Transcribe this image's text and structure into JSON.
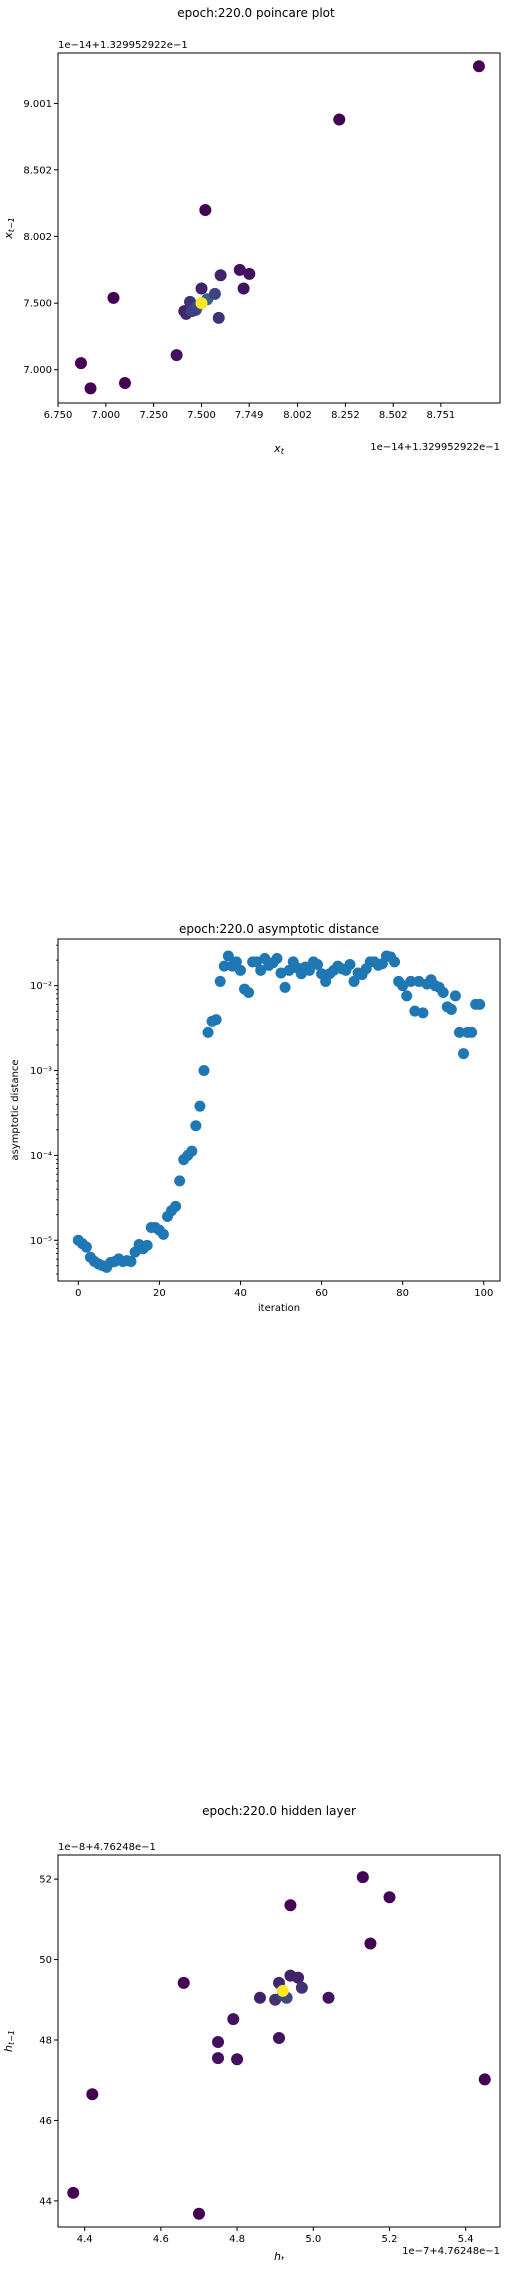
{
  "chart_data": [
    {
      "type": "scatter",
      "title": "epoch:220.0 poincare plot",
      "xlabel": "x_t",
      "ylabel": "x_{t-1}",
      "x_offset_label": "1e−14+1.329952922e−1",
      "y_offset_label": "1e−14+1.329952922e−1",
      "xlim": [
        6.75,
        9.06
      ],
      "ylim": [
        6.75,
        9.38
      ],
      "xticks": [
        6.75,
        7.0,
        7.25,
        7.5,
        7.749,
        8.002,
        8.252,
        8.502,
        8.751
      ],
      "xtick_labels": [
        "6.750",
        "7.000",
        "7.250",
        "7.500",
        "7.749",
        "8.002",
        "8.252",
        "8.502",
        "8.751"
      ],
      "yticks": [
        7.0,
        7.5,
        8.002,
        8.502,
        9.001
      ],
      "ytick_labels": [
        "7.000",
        "7.500",
        "8.002",
        "8.502",
        "9.001"
      ],
      "grid": false,
      "colormap": "viridis",
      "points": [
        {
          "x": 6.87,
          "y": 7.05,
          "c": 0.0
        },
        {
          "x": 6.92,
          "y": 6.86,
          "c": 0.0
        },
        {
          "x": 7.04,
          "y": 7.54,
          "c": 0.0
        },
        {
          "x": 7.1,
          "y": 6.9,
          "c": 0.0
        },
        {
          "x": 7.37,
          "y": 7.11,
          "c": 0.05
        },
        {
          "x": 7.52,
          "y": 8.2,
          "c": 0.0
        },
        {
          "x": 7.41,
          "y": 7.44,
          "c": 0.1
        },
        {
          "x": 7.42,
          "y": 7.42,
          "c": 0.12
        },
        {
          "x": 7.44,
          "y": 7.51,
          "c": 0.15
        },
        {
          "x": 7.45,
          "y": 7.44,
          "c": 0.2
        },
        {
          "x": 7.47,
          "y": 7.45,
          "c": 0.2
        },
        {
          "x": 7.48,
          "y": 7.48,
          "c": 0.22
        },
        {
          "x": 7.5,
          "y": 7.61,
          "c": 0.1
        },
        {
          "x": 7.53,
          "y": 7.53,
          "c": 0.3
        },
        {
          "x": 7.57,
          "y": 7.57,
          "c": 0.2
        },
        {
          "x": 7.59,
          "y": 7.39,
          "c": 0.15
        },
        {
          "x": 7.6,
          "y": 7.71,
          "c": 0.1
        },
        {
          "x": 7.7,
          "y": 7.75,
          "c": 0.05
        },
        {
          "x": 7.72,
          "y": 7.61,
          "c": 0.05
        },
        {
          "x": 7.75,
          "y": 7.72,
          "c": 0.05
        },
        {
          "x": 8.22,
          "y": 8.88,
          "c": 0.0
        },
        {
          "x": 8.95,
          "y": 9.28,
          "c": 0.0
        },
        {
          "x": 7.5,
          "y": 7.5,
          "c": 1.0
        }
      ]
    },
    {
      "type": "scatter",
      "title": "epoch:220.0 asymptotic distance",
      "xlabel": "iteration",
      "ylabel": "asymptotic distance",
      "yscale": "log",
      "xlim": [
        -5,
        104
      ],
      "ylim_log10": [
        -5.48,
        -1.45
      ],
      "xticks": [
        0,
        20,
        40,
        60,
        80,
        100
      ],
      "xtick_labels": [
        "0",
        "20",
        "40",
        "60",
        "80",
        "100"
      ],
      "yticks_log10": [
        -5,
        -4,
        -3,
        -2
      ],
      "ytick_labels": [
        "10⁻⁵",
        "10⁻⁴",
        "10⁻³",
        "10⁻²"
      ],
      "grid": false,
      "color": "#1f77b4",
      "x": [
        0,
        1,
        2,
        3,
        4,
        5,
        6,
        7,
        8,
        9,
        10,
        11,
        12,
        13,
        14,
        15,
        16,
        17,
        18,
        19,
        20,
        21,
        22,
        23,
        24,
        25,
        26,
        27,
        28,
        29,
        30,
        31,
        32,
        33,
        34,
        35,
        36,
        37,
        38,
        39,
        40,
        41,
        42,
        43,
        44,
        45,
        46,
        47,
        48,
        49,
        50,
        51,
        52,
        53,
        54,
        55,
        56,
        57,
        58,
        59,
        60,
        61,
        62,
        63,
        64,
        65,
        66,
        67,
        68,
        69,
        70,
        71,
        72,
        73,
        74,
        75,
        76,
        77,
        78,
        79,
        80,
        81,
        82,
        83,
        84,
        85,
        86,
        87,
        88,
        89,
        90,
        91,
        92,
        93,
        94,
        95,
        96,
        97,
        98,
        99
      ],
      "log10_y": [
        -5.0,
        -5.04,
        -5.08,
        -5.2,
        -5.25,
        -5.28,
        -5.3,
        -5.32,
        -5.26,
        -5.25,
        -5.22,
        -5.25,
        -5.24,
        -5.25,
        -5.14,
        -5.05,
        -5.1,
        -5.06,
        -4.85,
        -4.85,
        -4.88,
        -4.93,
        -4.72,
        -4.65,
        -4.6,
        -4.3,
        -4.05,
        -4.0,
        -3.95,
        -3.65,
        -3.42,
        -3.0,
        -2.55,
        -2.42,
        -2.4,
        -1.95,
        -1.77,
        -1.65,
        -1.77,
        -1.72,
        -1.82,
        -2.04,
        -2.08,
        -1.72,
        -1.72,
        -1.82,
        -1.68,
        -1.76,
        -1.73,
        -1.68,
        -1.85,
        -2.02,
        -1.82,
        -1.72,
        -1.79,
        -1.86,
        -1.78,
        -1.82,
        -1.72,
        -1.75,
        -1.86,
        -1.95,
        -1.86,
        -1.82,
        -1.77,
        -1.8,
        -1.82,
        -1.75,
        -1.95,
        -1.85,
        -1.87,
        -1.8,
        -1.72,
        -1.72,
        -1.76,
        -1.74,
        -1.65,
        -1.66,
        -1.72,
        -1.95,
        -2.0,
        -2.12,
        -1.95,
        -2.3,
        -1.95,
        -2.32,
        -1.98,
        -1.93,
        -2.0,
        -2.02,
        -2.08,
        -2.25,
        -2.28,
        -2.12,
        -2.55,
        -2.8,
        -2.55,
        -2.55,
        -2.22,
        -2.22
      ]
    },
    {
      "type": "scatter",
      "title": "epoch:220.0 hidden layer",
      "xlabel": "h_t",
      "ylabel": "h_{t-1}",
      "x_offset_label": "1e−7+4.76248e−1",
      "y_offset_label": "1e−8+4.76248e−1",
      "xlim": [
        4.33,
        5.49
      ],
      "ylim": [
        43.35,
        52.6
      ],
      "xticks": [
        4.4,
        4.6,
        4.8,
        5.0,
        5.2,
        5.4
      ],
      "xtick_labels": [
        "4.4",
        "4.6",
        "4.8",
        "5.0",
        "5.2",
        "5.4"
      ],
      "yticks": [
        44,
        46,
        48,
        50,
        52
      ],
      "ytick_labels": [
        "44",
        "46",
        "48",
        "50",
        "52"
      ],
      "grid": false,
      "colormap": "viridis",
      "points": [
        {
          "x": 4.37,
          "y": 44.2,
          "c": 0.0
        },
        {
          "x": 4.42,
          "y": 46.65,
          "c": 0.0
        },
        {
          "x": 4.66,
          "y": 49.42,
          "c": 0.0
        },
        {
          "x": 4.7,
          "y": 43.68,
          "c": 0.0
        },
        {
          "x": 4.75,
          "y": 47.95,
          "c": 0.05
        },
        {
          "x": 4.75,
          "y": 47.55,
          "c": 0.05
        },
        {
          "x": 4.79,
          "y": 48.52,
          "c": 0.05
        },
        {
          "x": 4.8,
          "y": 47.52,
          "c": 0.05
        },
        {
          "x": 4.86,
          "y": 49.05,
          "c": 0.1
        },
        {
          "x": 4.9,
          "y": 49.0,
          "c": 0.15
        },
        {
          "x": 4.91,
          "y": 49.42,
          "c": 0.12
        },
        {
          "x": 4.91,
          "y": 48.05,
          "c": 0.05
        },
        {
          "x": 4.92,
          "y": 49.12,
          "c": 0.2
        },
        {
          "x": 4.93,
          "y": 49.05,
          "c": 0.22
        },
        {
          "x": 4.94,
          "y": 49.6,
          "c": 0.1
        },
        {
          "x": 4.94,
          "y": 51.35,
          "c": 0.0
        },
        {
          "x": 4.96,
          "y": 49.55,
          "c": 0.1
        },
        {
          "x": 4.97,
          "y": 49.3,
          "c": 0.15
        },
        {
          "x": 5.04,
          "y": 49.05,
          "c": 0.05
        },
        {
          "x": 5.13,
          "y": 52.05,
          "c": 0.0
        },
        {
          "x": 5.15,
          "y": 50.4,
          "c": 0.0
        },
        {
          "x": 5.2,
          "y": 51.55,
          "c": 0.0
        },
        {
          "x": 5.45,
          "y": 47.02,
          "c": 0.0
        },
        {
          "x": 4.92,
          "y": 49.22,
          "c": 1.0
        }
      ]
    }
  ]
}
